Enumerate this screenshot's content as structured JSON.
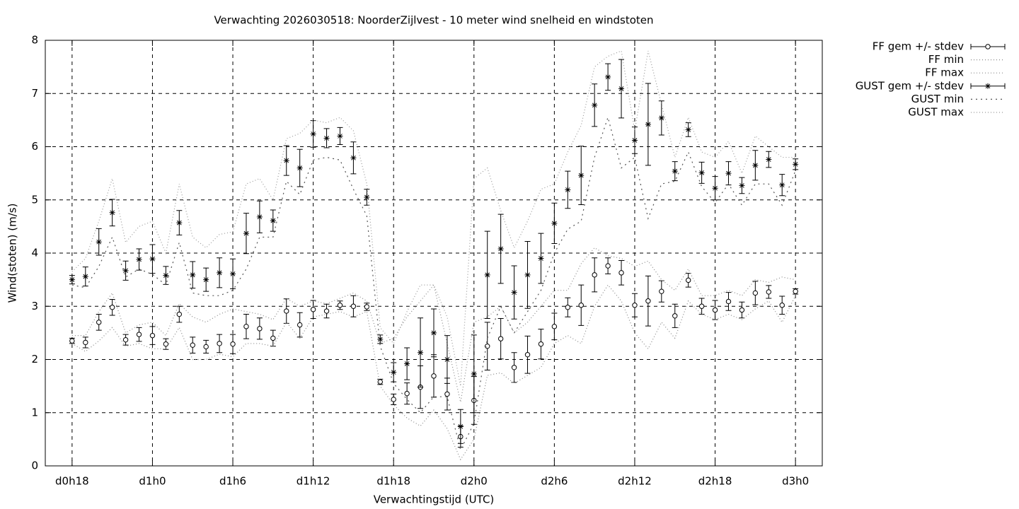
{
  "chart_data": {
    "type": "errorbar",
    "title": "Verwachting 2026030518: NoorderZijlvest - 10 meter wind snelheid en windstoten",
    "xlabel": "Verwachtingstijd (UTC)",
    "ylabel": "Wind(stoten) (m/s)",
    "x": [
      18,
      19,
      20,
      21,
      22,
      23,
      24,
      25,
      26,
      27,
      28,
      29,
      30,
      31,
      32,
      33,
      34,
      35,
      36,
      37,
      38,
      39,
      40,
      41,
      42,
      43,
      44,
      45,
      46,
      47,
      48,
      49,
      50,
      51,
      52,
      53,
      54,
      55,
      56,
      57,
      58,
      59,
      60,
      61,
      62,
      63,
      64,
      65,
      66,
      67,
      68,
      69,
      70,
      71,
      72
    ],
    "xlim": [
      16,
      74
    ],
    "xticks": [
      {
        "value": 18,
        "label": "d0h18"
      },
      {
        "value": 24,
        "label": "d1h0"
      },
      {
        "value": 30,
        "label": "d1h6"
      },
      {
        "value": 36,
        "label": "d1h12"
      },
      {
        "value": 42,
        "label": "d1h18"
      },
      {
        "value": 48,
        "label": "d2h0"
      },
      {
        "value": 54,
        "label": "d2h6"
      },
      {
        "value": 60,
        "label": "d2h12"
      },
      {
        "value": 66,
        "label": "d2h18"
      },
      {
        "value": 72,
        "label": "d3h0"
      }
    ],
    "ylim": [
      0,
      8
    ],
    "yticks": [
      0,
      1,
      2,
      3,
      4,
      5,
      6,
      7,
      8
    ],
    "grid": true,
    "legend": "outside-right",
    "series": [
      {
        "name": "FF gem +/- stdev",
        "style": "errorbar",
        "marker": "circle",
        "color": "#000000",
        "values": [
          2.35,
          2.32,
          2.7,
          2.98,
          2.37,
          2.47,
          2.45,
          2.29,
          2.85,
          2.27,
          2.24,
          2.3,
          2.29,
          2.62,
          2.58,
          2.4,
          2.91,
          2.65,
          2.94,
          2.91,
          3.02,
          3.0,
          2.99,
          1.58,
          1.25,
          1.36,
          1.48,
          1.69,
          1.35,
          0.55,
          1.23,
          2.25,
          2.39,
          1.85,
          2.09,
          2.29,
          2.62,
          2.98,
          3.02,
          3.59,
          3.76,
          3.63,
          3.02,
          3.1,
          3.28,
          2.82,
          3.49,
          3.0,
          2.93,
          3.09,
          2.93,
          3.25,
          3.27,
          3.02,
          3.28
        ],
        "errors": [
          0.05,
          0.1,
          0.15,
          0.15,
          0.1,
          0.13,
          0.17,
          0.1,
          0.15,
          0.15,
          0.12,
          0.17,
          0.18,
          0.23,
          0.2,
          0.15,
          0.23,
          0.23,
          0.17,
          0.13,
          0.08,
          0.2,
          0.07,
          0.05,
          0.1,
          0.2,
          0.4,
          0.4,
          0.3,
          0.2,
          0.45,
          0.45,
          0.38,
          0.28,
          0.35,
          0.28,
          0.25,
          0.18,
          0.38,
          0.32,
          0.15,
          0.23,
          0.22,
          0.47,
          0.2,
          0.22,
          0.13,
          0.15,
          0.18,
          0.17,
          0.15,
          0.22,
          0.12,
          0.17,
          0.05
        ]
      },
      {
        "name": "FF min",
        "style": "dotted",
        "color": "#888888",
        "values": [
          2.3,
          2.15,
          2.35,
          2.6,
          2.25,
          2.3,
          2.2,
          2.2,
          2.6,
          2.0,
          2.0,
          2.1,
          2.05,
          2.3,
          2.3,
          2.25,
          2.7,
          2.4,
          2.8,
          2.85,
          2.9,
          2.8,
          2.9,
          1.5,
          1.15,
          0.9,
          0.75,
          1.05,
          0.7,
          0.12,
          0.5,
          1.7,
          1.75,
          1.55,
          1.7,
          1.85,
          2.3,
          2.45,
          2.3,
          3.0,
          3.4,
          3.1,
          2.5,
          2.2,
          2.7,
          2.4,
          3.1,
          2.85,
          2.75,
          2.85,
          2.75,
          2.95,
          3.1,
          2.7,
          3.2
        ]
      },
      {
        "name": "FF max",
        "style": "dotted",
        "color": "#888888",
        "values": [
          2.45,
          2.45,
          2.9,
          3.25,
          2.5,
          2.65,
          2.7,
          2.45,
          3.05,
          2.8,
          2.7,
          2.85,
          2.95,
          2.9,
          2.85,
          2.75,
          3.15,
          3.0,
          3.1,
          3.05,
          3.15,
          3.25,
          3.1,
          2.3,
          2.4,
          2.8,
          3.1,
          3.4,
          2.3,
          1.2,
          2.7,
          2.8,
          3.0,
          2.5,
          2.7,
          3.0,
          3.3,
          3.3,
          3.8,
          4.1,
          3.95,
          3.9,
          3.75,
          3.85,
          3.5,
          3.3,
          3.7,
          3.2,
          3.2,
          3.3,
          3.2,
          3.5,
          3.45,
          3.55,
          3.5
        ]
      },
      {
        "name": "GUST gem +/- stdev",
        "style": "errorbar",
        "marker": "star",
        "color": "#000000",
        "values": [
          3.5,
          3.56,
          4.21,
          4.76,
          3.67,
          3.88,
          3.89,
          3.58,
          4.57,
          3.59,
          3.5,
          3.63,
          3.61,
          4.37,
          4.68,
          4.61,
          5.74,
          5.6,
          6.24,
          6.16,
          6.2,
          5.79,
          5.05,
          2.38,
          1.76,
          1.92,
          2.13,
          2.5,
          2.0,
          0.74,
          1.73,
          3.59,
          4.08,
          3.26,
          3.59,
          3.9,
          4.56,
          5.19,
          5.46,
          6.78,
          7.31,
          7.09,
          6.12,
          6.42,
          6.54,
          5.54,
          6.32,
          5.51,
          5.22,
          5.5,
          5.27,
          5.65,
          5.76,
          5.28,
          5.67
        ],
        "errors": [
          0.08,
          0.18,
          0.25,
          0.25,
          0.18,
          0.2,
          0.27,
          0.17,
          0.23,
          0.25,
          0.22,
          0.28,
          0.28,
          0.38,
          0.3,
          0.2,
          0.28,
          0.35,
          0.25,
          0.18,
          0.16,
          0.3,
          0.15,
          0.08,
          0.18,
          0.3,
          0.65,
          0.45,
          0.45,
          0.32,
          0.73,
          0.82,
          0.65,
          0.5,
          0.63,
          0.47,
          0.38,
          0.35,
          0.55,
          0.4,
          0.25,
          0.55,
          0.25,
          0.77,
          0.32,
          0.18,
          0.13,
          0.2,
          0.22,
          0.22,
          0.15,
          0.28,
          0.15,
          0.2,
          0.1
        ]
      },
      {
        "name": "GUST min",
        "style": "dotted-wide",
        "color": "#555555",
        "values": [
          3.4,
          3.35,
          3.75,
          4.3,
          3.55,
          3.7,
          3.6,
          3.4,
          4.2,
          3.25,
          3.2,
          3.2,
          3.3,
          3.7,
          4.3,
          4.3,
          5.35,
          5.1,
          5.75,
          5.8,
          5.75,
          5.2,
          4.7,
          2.25,
          1.55,
          1.25,
          1.0,
          1.3,
          1.3,
          0.3,
          0.8,
          2.4,
          3.0,
          2.5,
          2.9,
          3.3,
          4.0,
          4.45,
          4.6,
          5.8,
          6.55,
          5.6,
          5.8,
          4.65,
          5.3,
          5.35,
          5.9,
          5.25,
          4.95,
          5.3,
          4.9,
          5.3,
          5.3,
          4.9,
          5.55
        ]
      },
      {
        "name": "GUST max",
        "style": "dotted",
        "color": "#999999",
        "values": [
          3.65,
          3.9,
          4.6,
          5.4,
          4.2,
          4.5,
          4.6,
          4.0,
          5.3,
          4.3,
          4.1,
          4.35,
          4.4,
          5.3,
          5.4,
          5.0,
          6.15,
          6.25,
          6.5,
          6.45,
          6.55,
          6.3,
          5.3,
          2.6,
          2.3,
          2.9,
          3.4,
          3.4,
          2.8,
          1.5,
          5.4,
          5.6,
          4.8,
          4.1,
          4.6,
          5.2,
          5.3,
          5.9,
          6.4,
          7.5,
          7.7,
          7.8,
          6.3,
          7.8,
          6.8,
          5.8,
          6.55,
          5.9,
          5.8,
          6.1,
          5.5,
          6.2,
          6.0,
          5.8,
          5.8
        ]
      }
    ]
  }
}
